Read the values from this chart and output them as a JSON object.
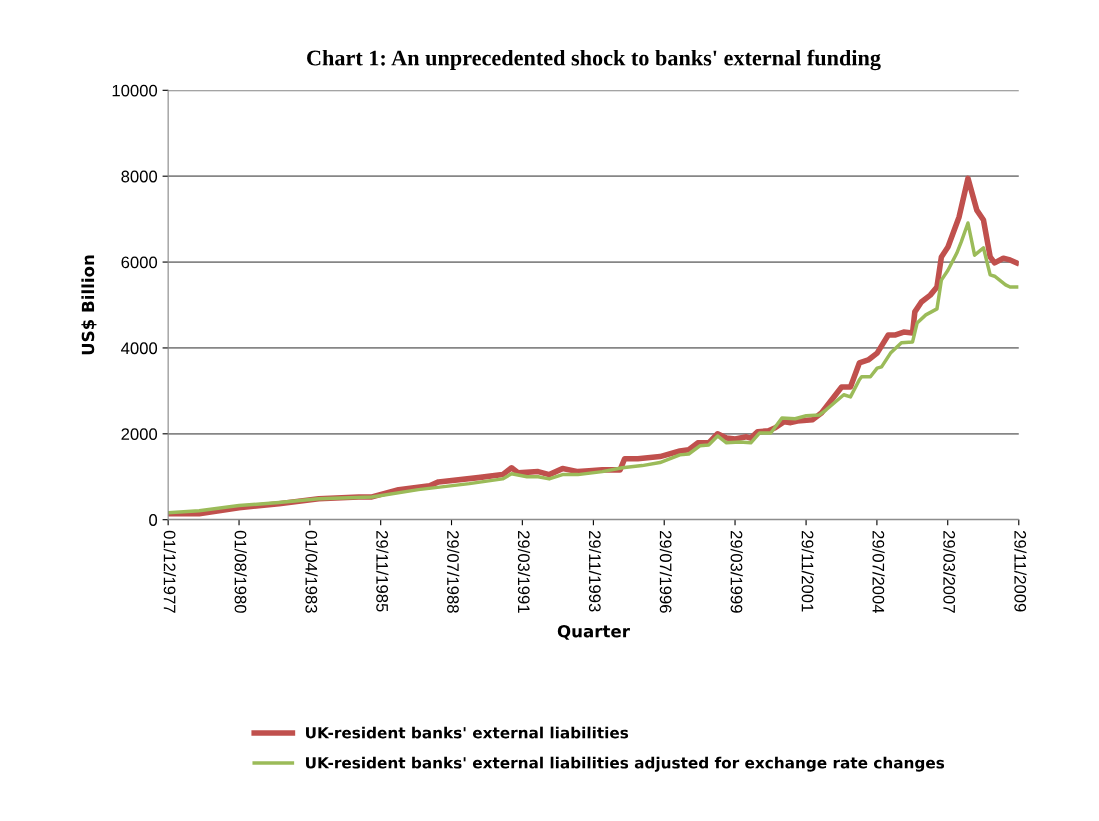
{
  "chart_data": {
    "type": "line",
    "title": "Chart 1: An unprecedented shock to banks' external funding",
    "xlabel": "Quarter",
    "ylabel": "US$ Billion",
    "xlim": [
      "1977-12-01",
      "2009-11-29"
    ],
    "xticks": [
      {
        "value": "1977-12-01",
        "label": "01/12/1977"
      },
      {
        "value": "1980-08-01",
        "label": "01/08/1980"
      },
      {
        "value": "1983-04-01",
        "label": "01/04/1983"
      },
      {
        "value": "1985-11-29",
        "label": "29/11/1985"
      },
      {
        "value": "1988-07-29",
        "label": "29/07/1988"
      },
      {
        "value": "1991-03-29",
        "label": "29/03/1991"
      },
      {
        "value": "1993-11-29",
        "label": "29/11/1993"
      },
      {
        "value": "1996-07-29",
        "label": "29/07/1996"
      },
      {
        "value": "1999-03-29",
        "label": "29/03/1999"
      },
      {
        "value": "2001-11-29",
        "label": "29/11/2001"
      },
      {
        "value": "2004-07-29",
        "label": "29/07/2004"
      },
      {
        "value": "2007-03-29",
        "label": "29/03/2007"
      },
      {
        "value": "2009-11-29",
        "label": "29/11/2009"
      }
    ],
    "ylim": [
      0,
      10000
    ],
    "yticks": [
      0,
      2000,
      4000,
      6000,
      8000,
      10000
    ],
    "grid": "y",
    "legend": "bottom",
    "marker": "none",
    "line_style": "solid",
    "series": [
      {
        "name": "UK-resident banks' external liabilities",
        "color": "#c0504d",
        "x": [
          "1977-12",
          "1979-02",
          "1980-08",
          "1982-02",
          "1983-08",
          "1985-02",
          "1985-08",
          "1986-08",
          "1987-10",
          "1988-02",
          "1989-08",
          "1990-07",
          "1990-11",
          "1991-02",
          "1991-11",
          "1992-04",
          "1992-10",
          "1993-05",
          "1993-10",
          "1994-04",
          "1994-12",
          "1995-02",
          "1995-08",
          "1996-06",
          "1997-03",
          "1997-07",
          "1997-11",
          "1998-04",
          "1998-08",
          "1998-12",
          "1999-04",
          "1999-09",
          "1999-11",
          "2000-02",
          "2000-07",
          "2000-10",
          "2001-02",
          "2001-05",
          "2001-08",
          "2002-03",
          "2002-07",
          "2003-04",
          "2003-08",
          "2003-12",
          "2004-04",
          "2004-08",
          "2005-01",
          "2005-04",
          "2005-08",
          "2005-12",
          "2006-01",
          "2006-04",
          "2006-08",
          "2006-11",
          "2007-01",
          "2007-04",
          "2007-09",
          "2008-01",
          "2008-05",
          "2008-08",
          "2008-11",
          "2009-01",
          "2009-05",
          "2009-08",
          "2009-11"
        ],
        "values": [
          140,
          140,
          280,
          370,
          490,
          530,
          530,
          700,
          790,
          880,
          980,
          1050,
          1210,
          1090,
          1120,
          1050,
          1190,
          1120,
          1140,
          1160,
          1160,
          1420,
          1420,
          1470,
          1600,
          1630,
          1790,
          1790,
          2000,
          1900,
          1880,
          1930,
          1900,
          2050,
          2070,
          2140,
          2280,
          2260,
          2300,
          2330,
          2490,
          3090,
          3090,
          3650,
          3720,
          3880,
          4300,
          4300,
          4370,
          4350,
          4840,
          5070,
          5230,
          5420,
          6120,
          6350,
          7050,
          7950,
          7210,
          6980,
          6120,
          5980,
          6090,
          6050,
          5980
        ]
      },
      {
        "name": "UK-resident banks' external liabilities adjusted for exchange rate changes",
        "color": "#9bbb59",
        "x": [
          "1977-12",
          "1979-02",
          "1980-08",
          "1982-02",
          "1983-08",
          "1985-08",
          "1987-05",
          "1989-04",
          "1990-07",
          "1990-11",
          "1991-06",
          "1991-11",
          "1992-04",
          "1992-10",
          "1993-05",
          "1994-04",
          "1995-01",
          "1995-10",
          "1996-06",
          "1997-03",
          "1997-07",
          "1997-12",
          "1998-04",
          "1998-08",
          "1998-12",
          "1999-06",
          "1999-11",
          "2000-03",
          "2000-08",
          "2001-01",
          "2001-07",
          "2001-12",
          "2002-06",
          "2002-09",
          "2003-05",
          "2003-08",
          "2003-12",
          "2004-01",
          "2004-05",
          "2004-08",
          "2004-10",
          "2005-02",
          "2005-07",
          "2005-12",
          "2006-02",
          "2006-06",
          "2006-11",
          "2007-01",
          "2007-04",
          "2007-08",
          "2007-10",
          "2008-01",
          "2008-04",
          "2008-08",
          "2008-11",
          "2009-01",
          "2009-06",
          "2009-08",
          "2009-11"
        ],
        "values": [
          160,
          210,
          330,
          400,
          490,
          530,
          700,
          840,
          950,
          1070,
          1000,
          1000,
          950,
          1050,
          1050,
          1120,
          1210,
          1260,
          1330,
          1510,
          1530,
          1720,
          1740,
          1950,
          1790,
          1810,
          1790,
          2020,
          2020,
          2370,
          2350,
          2420,
          2440,
          2560,
          2910,
          2860,
          3260,
          3330,
          3330,
          3530,
          3560,
          3880,
          4120,
          4140,
          4580,
          4770,
          4910,
          5580,
          5810,
          6210,
          6470,
          6910,
          6160,
          6330,
          5700,
          5670,
          5470,
          5420,
          5420
        ]
      }
    ]
  }
}
